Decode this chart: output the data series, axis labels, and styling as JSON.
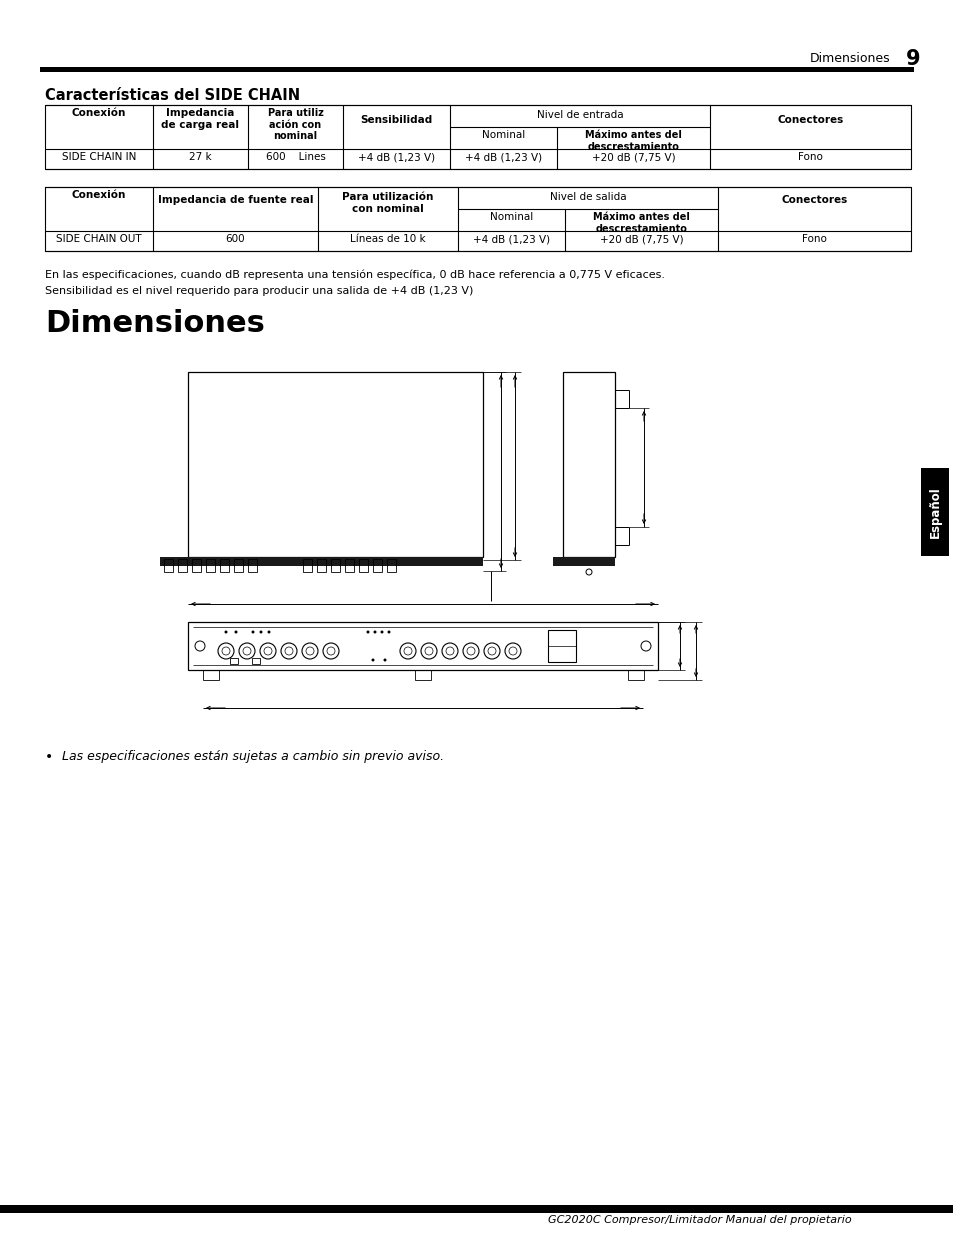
{
  "page_header_text": "Dimensiones",
  "page_number": "9",
  "section_title": "Características del SIDE CHAIN",
  "note1": "En las especificaciones, cuando dB representa una tensión específica, 0 dB hace referencia a 0,775 V eficaces.",
  "note2": "Sensibilidad es el nivel requerido para producir una salida de +4 dB (1,23 V)",
  "dim_title": "Dimensiones",
  "bullet_text": "Las especificaciones están sujetas a cambio sin previo aviso.",
  "footer_text": "GC2020C Compresor/Limitador Manual del propietario",
  "espanol_tab": "Español",
  "bg_color": "#ffffff",
  "text_color": "#000000",
  "t1_col1_h1": "Conexión",
  "t1_col2_h1": "Impedancia\nde carga real",
  "t1_col3_h1": "Para utiliz\nación con\nnominal",
  "t1_col4_h1": "Sensibilidad",
  "t1_span_h1": "Nivel de entrada",
  "t1_col5_h2": "Nominal",
  "t1_col6_h2": "Máximo antes del\ndescrestamiento",
  "t1_col7_h1": "Conectores",
  "t1_d1": "SIDE CHAIN IN",
  "t1_d2": "27 k",
  "t1_d3": "600    Lines",
  "t1_d4": "+4 dB (1,23 V)",
  "t1_d5": "+4 dB (1,23 V)",
  "t1_d6": "+20 dB (7,75 V)",
  "t1_d7": "Fono",
  "t2_col1_h1": "Conexión",
  "t2_col2_h1": "Impedancia de fuente real",
  "t2_col3_h1": "Para utilización\ncon nominal",
  "t2_span_h1": "Nivel de salida",
  "t2_col4_h2": "Nominal",
  "t2_col5_h2": "Máximo antes del\ndescrestamiento",
  "t2_col6_h1": "Conectores",
  "t2_d1": "SIDE CHAIN OUT",
  "t2_d2": "600",
  "t2_d3": "Líneas de 10 k",
  "t2_d4": "+4 dB (1,23 V)",
  "t2_d5": "+20 dB (7,75 V)",
  "t2_d6": "Fono"
}
